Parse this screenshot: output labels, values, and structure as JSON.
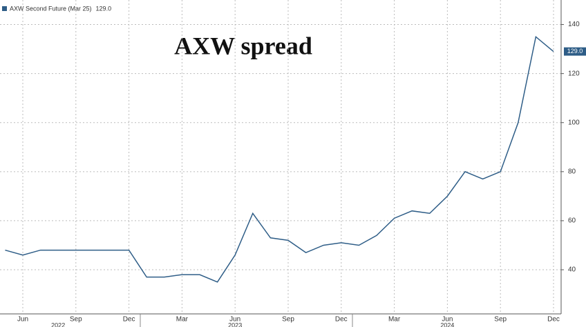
{
  "chart_data": {
    "type": "line",
    "title": "AXW spread",
    "x": [
      "2022-05",
      "2022-06",
      "2022-07",
      "2022-08",
      "2022-09",
      "2022-10",
      "2022-11",
      "2022-12",
      "2023-01",
      "2023-02",
      "2023-03",
      "2023-04",
      "2023-05",
      "2023-06",
      "2023-07",
      "2023-08",
      "2023-09",
      "2023-10",
      "2023-11",
      "2023-12",
      "2024-01",
      "2024-02",
      "2024-03",
      "2024-04",
      "2024-05",
      "2024-06",
      "2024-07",
      "2024-08",
      "2024-09",
      "2024-10",
      "2024-11",
      "2024-12"
    ],
    "series": [
      {
        "name": "AXW Second Future (Mar 25)",
        "color": "#2e5d87",
        "values": [
          48,
          46,
          48,
          48,
          48,
          48,
          48,
          48,
          37,
          37,
          38,
          38,
          35,
          46,
          63,
          53,
          52,
          47,
          50,
          51,
          50,
          54,
          61,
          64,
          63,
          70,
          80,
          77,
          80,
          100,
          135,
          129
        ]
      }
    ],
    "last_value": {
      "value": 129,
      "label": "129.0"
    },
    "ylim": [
      22,
      150
    ],
    "yticks": [
      40,
      60,
      80,
      100,
      120,
      140
    ],
    "xticks": [
      {
        "value": "2022-06",
        "label": "Jun"
      },
      {
        "value": "2022-09",
        "label": "Sep"
      },
      {
        "value": "2022-12",
        "label": "Dec"
      },
      {
        "value": "2023-03",
        "label": "Mar"
      },
      {
        "value": "2023-06",
        "label": "Jun"
      },
      {
        "value": "2023-09",
        "label": "Sep"
      },
      {
        "value": "2023-12",
        "label": "Dec"
      },
      {
        "value": "2024-03",
        "label": "Mar"
      },
      {
        "value": "2024-06",
        "label": "Jun"
      },
      {
        "value": "2024-09",
        "label": "Sep"
      },
      {
        "value": "2024-12",
        "label": "Dec"
      }
    ],
    "year_labels": [
      {
        "value": "2022-08",
        "label": "2022"
      },
      {
        "value": "2023-06",
        "label": "2023"
      },
      {
        "value": "2024-06",
        "label": "2024"
      }
    ],
    "grid": true
  }
}
